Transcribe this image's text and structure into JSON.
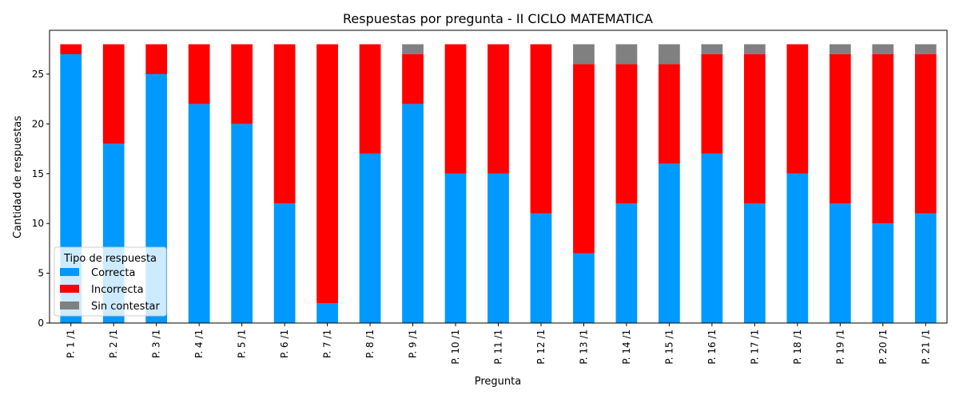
{
  "chart_data": {
    "type": "bar",
    "stacked": true,
    "title": "Respuestas por pregunta - II CICLO MATEMATICA",
    "xlabel": "Pregunta",
    "ylabel": "Cantidad de respuestas",
    "ylim": [
      0,
      29.4
    ],
    "yticks": [
      0,
      5,
      10,
      15,
      20,
      25
    ],
    "grid": false,
    "legend": {
      "title": "Tipo de respuesta",
      "placement": "lower-left"
    },
    "categories": [
      "P. 1 /1",
      "P. 2 /1",
      "P. 3 /1",
      "P. 4 /1",
      "P. 5 /1",
      "P. 6 /1",
      "P. 7 /1",
      "P. 8 /1",
      "P. 9 /1",
      "P. 10 /1",
      "P. 11 /1",
      "P. 12 /1",
      "P. 13 /1",
      "P. 14 /1",
      "P. 15 /1",
      "P. 16 /1",
      "P. 17 /1",
      "P. 18 /1",
      "P. 19 /1",
      "P. 20 /1",
      "P. 21 /1"
    ],
    "series": [
      {
        "name": "Correcta",
        "color": "#0099ff",
        "values": [
          27,
          18,
          25,
          22,
          20,
          12,
          2,
          17,
          22,
          15,
          15,
          11,
          7,
          12,
          16,
          17,
          12,
          15,
          12,
          10,
          11
        ]
      },
      {
        "name": "Incorrecta",
        "color": "#ff0000",
        "values": [
          1,
          10,
          3,
          6,
          8,
          16,
          26,
          11,
          5,
          13,
          13,
          17,
          19,
          14,
          10,
          10,
          15,
          13,
          15,
          17,
          16
        ]
      },
      {
        "name": "Sin contestar",
        "color": "#808080",
        "values": [
          0,
          0,
          0,
          0,
          0,
          0,
          0,
          0,
          1,
          0,
          0,
          0,
          2,
          2,
          2,
          1,
          1,
          0,
          1,
          1,
          1
        ]
      }
    ]
  }
}
